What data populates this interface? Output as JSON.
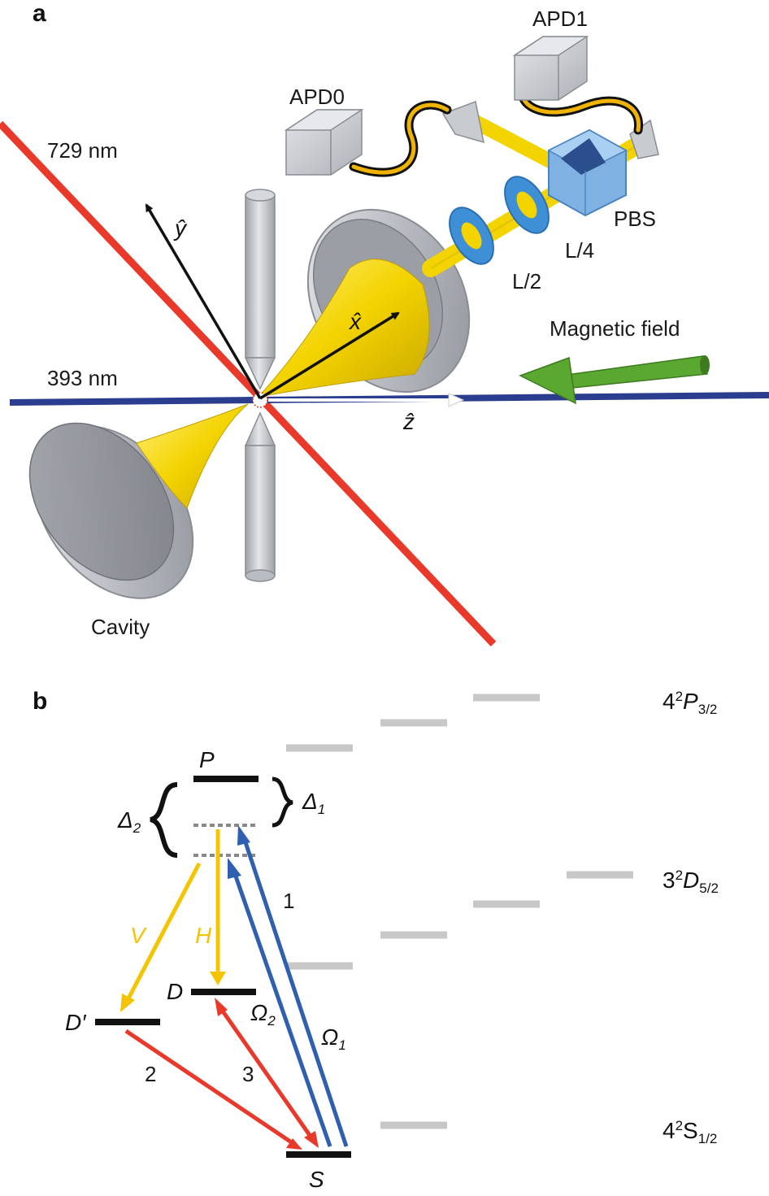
{
  "panel_a": {
    "label": "a",
    "labels": {
      "laser_729": "729 nm",
      "laser_393": "393 nm",
      "apd0": "APD0",
      "apd1": "APD1",
      "pbs": "PBS",
      "l4": "L/4",
      "l2": "L/2",
      "magnetic_field": "Magnetic field",
      "cavity": "Cavity",
      "axis_x": "x̂",
      "axis_y": "ŷ",
      "axis_z": "ẑ"
    },
    "colors": {
      "laser_729": "#e8392a",
      "laser_393": "#2b3d8f",
      "cavity_mode": "#f3d300",
      "fiber": "#f0b400",
      "optics_grey": "#b9bcc2",
      "waveplate": "#3f8fd6",
      "magnetic_arrow": "#5aa832"
    }
  },
  "panel_b": {
    "label": "b",
    "levels": {
      "P": "P",
      "D": "D",
      "Dprime": "D′",
      "S": "S",
      "P32_main": "4",
      "P32_sup": "2",
      "P32_L": "P",
      "P32_sub": "3/2",
      "D52_main": "3",
      "D52_sup": "2",
      "D52_L": "D",
      "D52_sub": "5/2",
      "S12_main": "4",
      "S12_sup": "2",
      "S12_L": "S",
      "S12_sub": "1/2"
    },
    "detunings": {
      "delta1": "Δ",
      "delta1_sub": "1",
      "delta2": "Δ",
      "delta2_sub": "2"
    },
    "transitions": {
      "V": "V",
      "H": "H",
      "omega1": "Ω",
      "omega1_sub": "1",
      "omega2": "Ω",
      "omega2_sub": "2",
      "n1": "1",
      "n2": "2",
      "n3": "3"
    },
    "colors": {
      "yellow": "#f5c400",
      "blue": "#2e5fb0",
      "red": "#e8392a",
      "level": "#111111",
      "zeeman": "#c8c8c8",
      "virtual": "#888888"
    }
  }
}
